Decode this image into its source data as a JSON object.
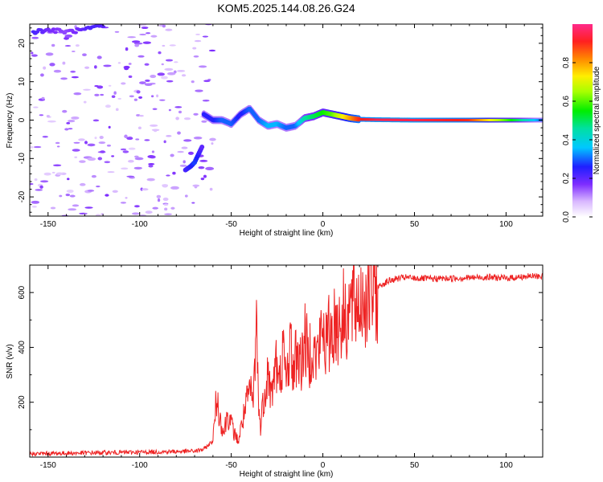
{
  "title": "KOM5.2025.144.08.26.G24",
  "chart_data": [
    {
      "type": "heatmap",
      "xlabel": "Height of straight line (km)",
      "ylabel": "Frequency (Hz)",
      "xlim": [
        -160,
        120
      ],
      "ylim": [
        -25,
        25
      ],
      "xticks": [
        -150,
        -100,
        -50,
        0,
        50,
        100
      ],
      "yticks": [
        -20,
        -10,
        0,
        10,
        20
      ],
      "colorbar": {
        "label": "Normalized spectral amplitude",
        "range": [
          0,
          1
        ],
        "ticks": [
          0.0,
          0.2,
          0.4,
          0.6,
          0.8
        ]
      },
      "ridge": {
        "description": "frequency of peak amplitude vs height",
        "x": [
          -65,
          -60,
          -55,
          -50,
          -45,
          -40,
          -35,
          -30,
          -25,
          -20,
          -15,
          -10,
          -5,
          0,
          5,
          10,
          15,
          20,
          30,
          50,
          80,
          120
        ],
        "frequency": [
          1.5,
          0,
          0,
          -1,
          1.5,
          3.0,
          0,
          -1.5,
          -1.0,
          -2.0,
          -1.5,
          0.5,
          1.0,
          2.0,
          1.5,
          1.0,
          0.5,
          0.2,
          0.1,
          0,
          0,
          0
        ],
        "amplitude": [
          0.25,
          0.25,
          0.3,
          0.3,
          0.25,
          0.3,
          0.3,
          0.35,
          0.35,
          0.3,
          0.3,
          0.45,
          0.5,
          0.55,
          0.6,
          0.7,
          0.8,
          0.9,
          0.95,
          0.95,
          0.9,
          0.3
        ]
      },
      "low_height_tail": {
        "x": [
          -75,
          -72,
          -70,
          -68,
          -66
        ],
        "frequency": [
          -13,
          -12,
          -11,
          -9,
          -7
        ],
        "amplitude": [
          0.22,
          0.25,
          0.28,
          0.25,
          0.2
        ]
      },
      "top_band": {
        "x": [
          -158,
          -150,
          -140,
          -130,
          -125,
          -120
        ],
        "frequency": [
          23,
          23.5,
          23,
          23.5,
          24,
          24.5
        ],
        "amplitude": [
          0.22,
          0.18,
          0.15,
          0.2,
          0.22,
          0.2
        ]
      }
    },
    {
      "type": "line",
      "xlabel": "Height of straight line (km)",
      "ylabel": "SNR (v/v)",
      "xlim": [
        -160,
        120
      ],
      "ylim": [
        0,
        700
      ],
      "xticks": [
        -150,
        -100,
        -50,
        0,
        50,
        100
      ],
      "yticks": [
        200,
        400,
        600
      ],
      "color": "#ee2222",
      "series": [
        {
          "x": [
            -160,
            -140,
            -120,
            -100,
            -80,
            -70,
            -65,
            -60,
            -58,
            -56,
            -54,
            -52,
            -50,
            -48,
            -46,
            -44,
            -42,
            -40,
            -38,
            -36,
            -35,
            -34,
            -32,
            -30,
            -28,
            -26,
            -24,
            -22,
            -20,
            -18,
            -16,
            -14,
            -12,
            -10,
            -8,
            -6,
            -4,
            -2,
            0,
            2,
            4,
            6,
            8,
            10,
            12,
            15,
            20,
            25,
            30,
            35,
            40,
            45,
            50,
            60,
            70,
            80,
            90,
            100,
            110,
            120
          ],
          "values": [
            12,
            14,
            16,
            18,
            20,
            22,
            28,
            60,
            220,
            140,
            90,
            160,
            120,
            80,
            60,
            130,
            180,
            240,
            200,
            520,
            150,
            120,
            230,
            320,
            210,
            360,
            250,
            390,
            270,
            420,
            310,
            400,
            330,
            440,
            360,
            420,
            360,
            400,
            470,
            410,
            460,
            480,
            490,
            500,
            520,
            540,
            570,
            600,
            620,
            640,
            650,
            655,
            652,
            650,
            652,
            654,
            656,
            652,
            658,
            660
          ]
        }
      ]
    }
  ]
}
